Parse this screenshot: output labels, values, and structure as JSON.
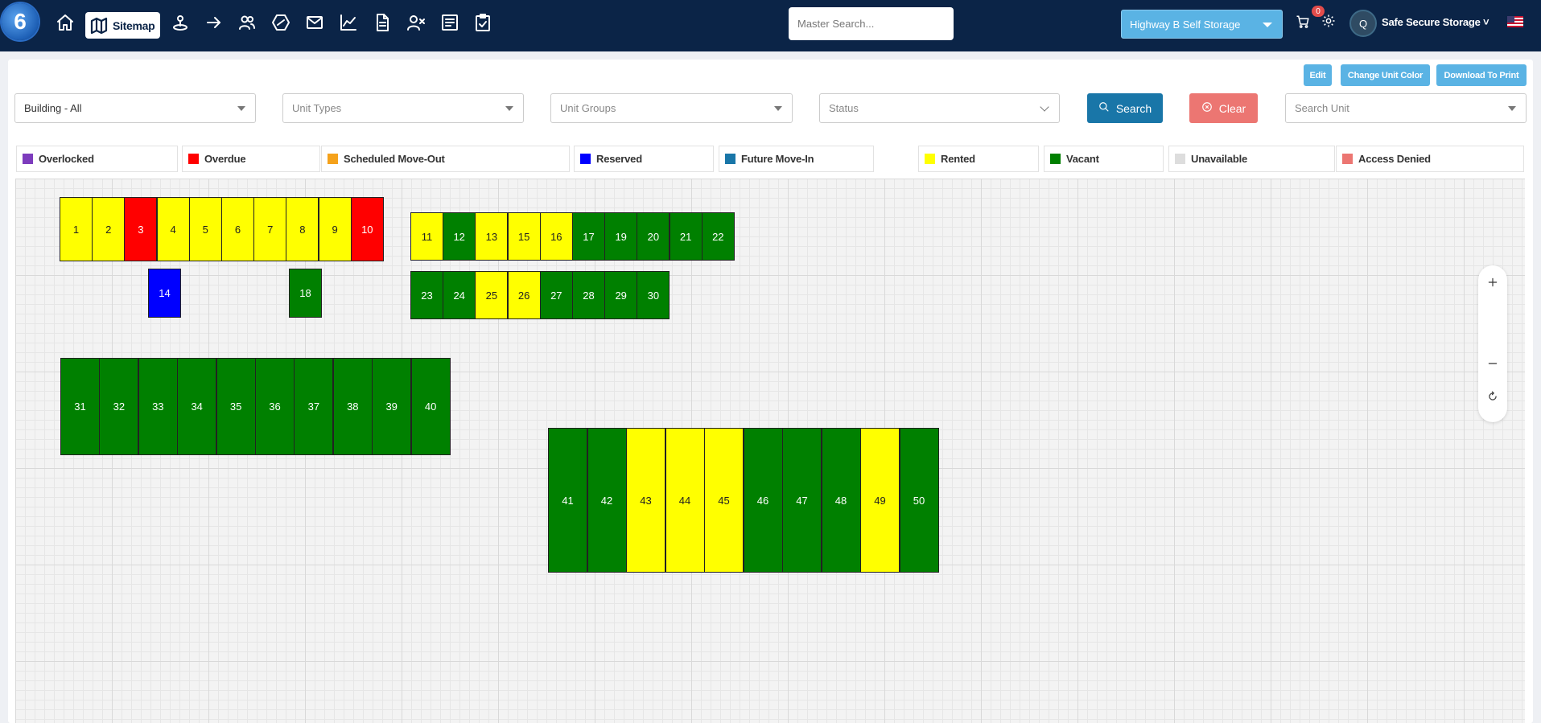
{
  "header": {
    "logo_text": "6",
    "sitemap_label": "Sitemap",
    "master_search_placeholder": "Master Search...",
    "facility": "Highway B Self Storage",
    "cart_count": "0",
    "user_initial": "Q",
    "user_name": "Safe Secure Storage ˅"
  },
  "toolbar": {
    "edit_label": "Edit",
    "change_color_label": "Change Unit Color",
    "download_label": "Download To Print"
  },
  "filters": {
    "building": "Building - All",
    "unit_types_placeholder": "Unit Types",
    "unit_groups_placeholder": "Unit Groups",
    "status_placeholder": "Status",
    "search_label": "Search",
    "clear_label": "Clear",
    "search_unit_placeholder": "Search Unit"
  },
  "legend": [
    {
      "label": "Overlocked",
      "color": "#7d3cbd"
    },
    {
      "label": "Overdue",
      "color": "#ff0000"
    },
    {
      "label": "Scheduled Move-Out",
      "color": "#f5a21b"
    },
    {
      "label": "Reserved",
      "color": "#0000ff"
    },
    {
      "label": "Future Move-In",
      "color": "#1976a8"
    },
    {
      "label": "Rented",
      "color": "#ffff00"
    },
    {
      "label": "Vacant",
      "color": "#008000"
    },
    {
      "label": "Unavailable",
      "color": "#dddddd"
    },
    {
      "label": "Access Denied",
      "color": "#ec7672"
    }
  ],
  "units": [
    {
      "label": "1",
      "status": "rented"
    },
    {
      "label": "2",
      "status": "rented"
    },
    {
      "label": "3",
      "status": "overdue"
    },
    {
      "label": "4",
      "status": "rented"
    },
    {
      "label": "5",
      "status": "rented"
    },
    {
      "label": "6",
      "status": "rented"
    },
    {
      "label": "7",
      "status": "rented"
    },
    {
      "label": "8",
      "status": "rented"
    },
    {
      "label": "9",
      "status": "rented"
    },
    {
      "label": "10",
      "status": "overdue"
    },
    {
      "label": "14",
      "status": "reserved"
    },
    {
      "label": "18",
      "status": "vacant"
    },
    {
      "label": "11",
      "status": "rented"
    },
    {
      "label": "12",
      "status": "vacant"
    },
    {
      "label": "13",
      "status": "rented"
    },
    {
      "label": "15",
      "status": "rented"
    },
    {
      "label": "16",
      "status": "rented"
    },
    {
      "label": "17",
      "status": "vacant"
    },
    {
      "label": "19",
      "status": "vacant"
    },
    {
      "label": "20",
      "status": "vacant"
    },
    {
      "label": "21",
      "status": "vacant"
    },
    {
      "label": "22",
      "status": "vacant"
    },
    {
      "label": "23",
      "status": "vacant"
    },
    {
      "label": "24",
      "status": "vacant"
    },
    {
      "label": "25",
      "status": "rented"
    },
    {
      "label": "26",
      "status": "rented"
    },
    {
      "label": "27",
      "status": "vacant"
    },
    {
      "label": "28",
      "status": "vacant"
    },
    {
      "label": "29",
      "status": "vacant"
    },
    {
      "label": "30",
      "status": "vacant"
    },
    {
      "label": "31",
      "status": "vacant"
    },
    {
      "label": "32",
      "status": "vacant"
    },
    {
      "label": "33",
      "status": "vacant"
    },
    {
      "label": "34",
      "status": "vacant"
    },
    {
      "label": "35",
      "status": "vacant"
    },
    {
      "label": "36",
      "status": "vacant"
    },
    {
      "label": "37",
      "status": "vacant"
    },
    {
      "label": "38",
      "status": "vacant"
    },
    {
      "label": "39",
      "status": "vacant"
    },
    {
      "label": "40",
      "status": "vacant"
    },
    {
      "label": "41",
      "status": "vacant"
    },
    {
      "label": "42",
      "status": "vacant"
    },
    {
      "label": "43",
      "status": "rented"
    },
    {
      "label": "44",
      "status": "rented"
    },
    {
      "label": "45",
      "status": "rented"
    },
    {
      "label": "46",
      "status": "vacant"
    },
    {
      "label": "47",
      "status": "vacant"
    },
    {
      "label": "48",
      "status": "vacant"
    },
    {
      "label": "49",
      "status": "rented"
    },
    {
      "label": "50",
      "status": "vacant"
    }
  ]
}
